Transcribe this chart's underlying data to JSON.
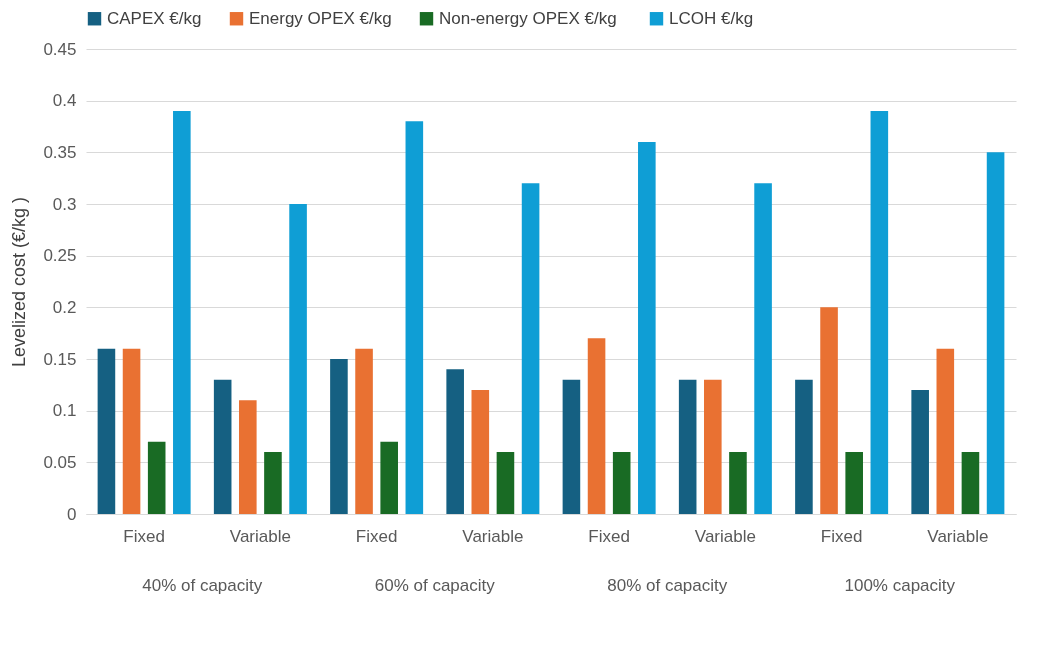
{
  "chart_data": {
    "type": "bar",
    "ylabel": "Levelized cost (€/kg )",
    "categories": [
      "Fixed",
      "Variable",
      "Fixed",
      "Variable",
      "Fixed",
      "Variable",
      "Fixed",
      "Variable"
    ],
    "series": [
      {
        "name": "CAPEX €/kg",
        "color": "#156082",
        "values": [
          0.16,
          0.13,
          0.15,
          0.14,
          0.13,
          0.13,
          0.13,
          0.12
        ]
      },
      {
        "name": "Energy OPEX €/kg",
        "color": "#e97132",
        "values": [
          0.16,
          0.11,
          0.16,
          0.12,
          0.17,
          0.13,
          0.2,
          0.16
        ]
      },
      {
        "name": "Non-energy OPEX  €/kg",
        "color": "#196b24",
        "values": [
          0.07,
          0.06,
          0.07,
          0.06,
          0.06,
          0.06,
          0.06,
          0.06
        ]
      },
      {
        "name": "LCOH  €/kg",
        "color": "#0f9ed5",
        "values": [
          0.39,
          0.3,
          0.38,
          0.32,
          0.36,
          0.32,
          0.39,
          0.35
        ]
      }
    ],
    "annotations": [
      "40% of capacity",
      "60% of capacity",
      "80% of capacity",
      "100% capacity"
    ],
    "ylim": [
      0,
      0.45
    ],
    "yticks": [
      0,
      0.05,
      0.1,
      0.15,
      0.2,
      0.25,
      0.3,
      0.35,
      0.4,
      0.45
    ],
    "grid": "y",
    "legend": "top"
  }
}
